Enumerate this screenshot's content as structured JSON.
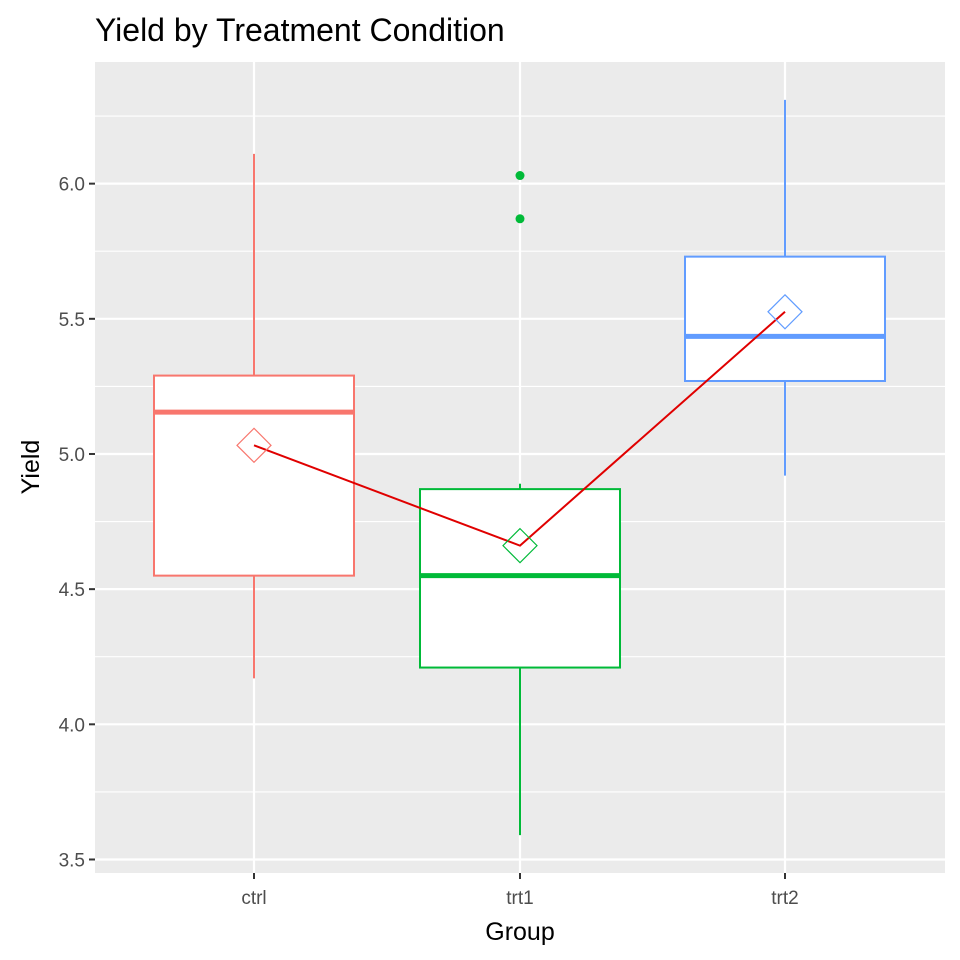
{
  "chart_data": {
    "type": "boxplot",
    "title": "Yield by Treatment Condition",
    "xlabel": "Group",
    "ylabel": "Yield",
    "categories": [
      "ctrl",
      "trt1",
      "trt2"
    ],
    "ylim": [
      3.45,
      6.45
    ],
    "y_ticks": [
      3.5,
      4.0,
      4.5,
      5.0,
      5.5,
      6.0
    ],
    "y_tick_labels": [
      "3.5",
      "4.0",
      "4.5",
      "5.0",
      "5.5",
      "6.0"
    ],
    "grid": true,
    "boxes": [
      {
        "group": "ctrl",
        "color": "#F8766D",
        "whisker_low": 4.17,
        "q1": 4.55,
        "median": 5.155,
        "q3": 5.29,
        "whisker_high": 6.11,
        "mean": 5.032,
        "outliers": []
      },
      {
        "group": "trt1",
        "color": "#00BA38",
        "whisker_low": 3.59,
        "q1": 4.21,
        "median": 4.55,
        "q3": 4.87,
        "whisker_high": 4.89,
        "mean": 4.661,
        "outliers": [
          5.87,
          6.03
        ]
      },
      {
        "group": "trt2",
        "color": "#619CFF",
        "whisker_low": 4.92,
        "q1": 5.27,
        "median": 5.435,
        "q3": 5.73,
        "whisker_high": 6.31,
        "mean": 5.526,
        "outliers": []
      }
    ],
    "mean_line_color": "#E00000",
    "colors": {
      "panel_background": "#EBEBEB",
      "grid_line": "#FFFFFF",
      "box_fill": "#FFFFFF",
      "axis_text": "#4D4D4D",
      "title_text": "#000000"
    }
  }
}
